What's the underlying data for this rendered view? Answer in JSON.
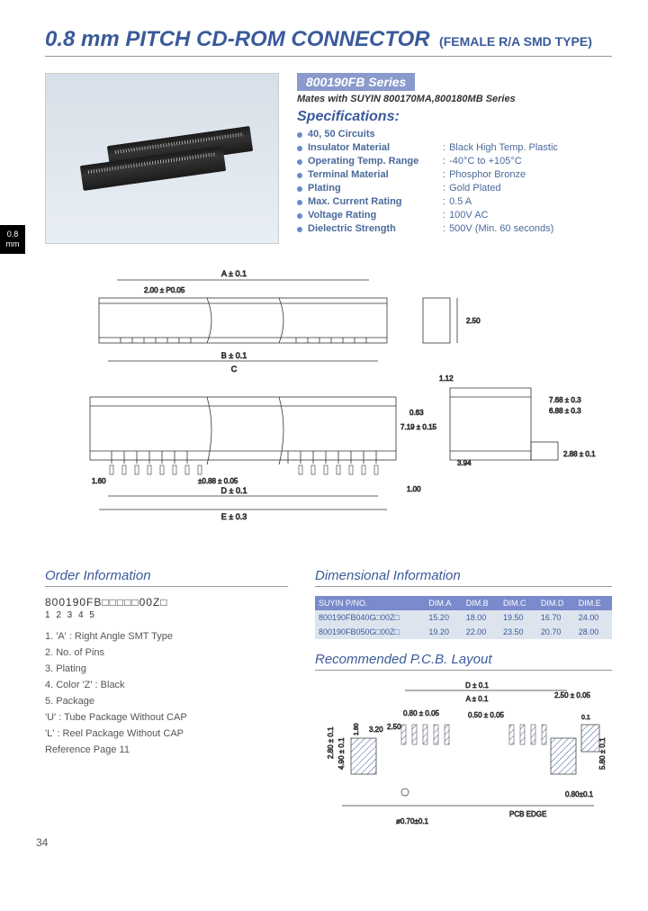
{
  "title": {
    "main": "0.8 mm PITCH CD-ROM CONNECTOR",
    "sub": "(FEMALE R/A SMD TYPE)"
  },
  "side_tab": "0.8\nmm",
  "series": {
    "badge": "800190FB Series",
    "mates": "Mates with SUYIN 800170MA,800180MB Series",
    "spec_heading": "Specifications:"
  },
  "specs": [
    {
      "label": "40, 50 Circuits",
      "value": ""
    },
    {
      "label": "Insulator Material",
      "value": "Black High Temp. Plastic"
    },
    {
      "label": "Operating Temp. Range",
      "value": "-40°C to +105°C"
    },
    {
      "label": "Terminal Material",
      "value": "Phosphor Bronze"
    },
    {
      "label": "Plating",
      "value": "Gold Plated"
    },
    {
      "label": "Max. Current Rating",
      "value": "0.5 A"
    },
    {
      "label": "Voltage Rating",
      "value": "100V AC"
    },
    {
      "label": "Dielectric Strength",
      "value": "500V (Min. 60 seconds)"
    }
  ],
  "drawing": {
    "labels": {
      "A": "A ± 0.1",
      "pitch": "2.00 ± P0.05",
      "B": "B ± 0.1",
      "C": "C",
      "D": "D ± 0.1",
      "E": "E ± 0.3",
      "h1": "2.50",
      "h2": "7.19 ± 0.15",
      "h3": "3.94",
      "w1": "7.68 ± 0.3",
      "w2": "6.88 ± 0.3",
      "w3": "2.88 ± 0.1",
      "w4": "1.60",
      "pad": "±0.88 ± 0.05",
      "off": "0.63",
      "off2": "1.00",
      "off3": "1.12"
    }
  },
  "order": {
    "heading": "Order Information",
    "partno": "800190FB□□□□□00Z□",
    "indices": "            1   2   3       4 5",
    "items": [
      "1. 'A' : Right Angle SMT Type",
      "2. No. of Pins",
      "3. Plating",
      "4. Color  'Z' : Black",
      "5. Package",
      "    'U' : Tube Package Without CAP",
      "    'L' : Reel Package Without CAP",
      "Reference Page 11"
    ]
  },
  "dim": {
    "heading": "Dimensional Information",
    "columns": [
      "SUYIN P/NO.",
      "DIM.A",
      "DIM.B",
      "DIM.C",
      "DIM.D",
      "DIM.E"
    ],
    "rows": [
      [
        "800190FB040G□00Z□",
        "15.20",
        "18.00",
        "19.50",
        "16.70",
        "24.00"
      ],
      [
        "800190FB050G□00Z□",
        "19.20",
        "22.00",
        "23.50",
        "20.70",
        "28.00"
      ]
    ]
  },
  "pcb": {
    "heading": "Recommended P.C.B. Layout",
    "labels": {
      "D": "D ± 0.1",
      "A": "A ± 0.1",
      "w1": "0.80 ± 0.05",
      "w2": "2.50",
      "pad": "0.50 ± 0.05",
      "h1": "2.80 ± 0.1",
      "h2": "4.90 ± 0.1",
      "h3": "3.20",
      "h4": "1.80",
      "h5": "5.80 ± 0.1",
      "off1": "0.1",
      "hole": "ø0.70±0.1",
      "edge": "PCB EDGE",
      "r": "0.80±0.1",
      "top": "2.50 ± 0.05"
    }
  },
  "page_number": "34",
  "colors": {
    "heading": "#3a5a9a",
    "bullet": "#6a8acc",
    "badge_bg": "#8a9acc",
    "table_head_bg": "#7a8acc",
    "table_row_bg": "#dde4ee",
    "photo_bg_top": "#d8dfe8",
    "photo_bg_bot": "#e8eef4"
  }
}
